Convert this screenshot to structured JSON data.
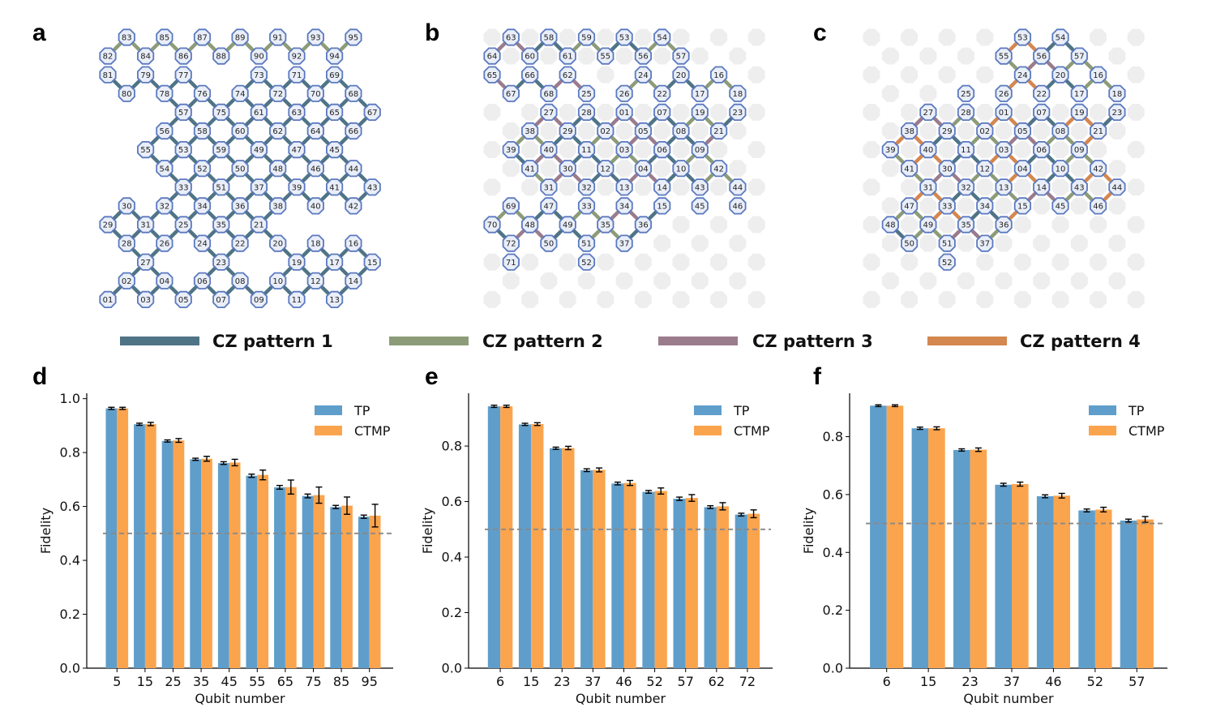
{
  "panels": {
    "a": "a",
    "b": "b",
    "c": "c",
    "d": "d",
    "e": "e",
    "f": "f"
  },
  "colors": {
    "cz1": "#4f7485",
    "cz2": "#8d9c78",
    "cz3": "#9a7c8c",
    "cz4": "#d4874f",
    "node_edge": "#5b79c0",
    "node_fill": "#e9eef8",
    "inactive": "#eeeeee",
    "tp": "#5f9ecb",
    "ctmp": "#fba44e",
    "threshold": "#888888"
  },
  "cz_legend": [
    {
      "label": "CZ pattern 1",
      "color": "#4f7485"
    },
    {
      "label": "CZ pattern 2",
      "color": "#8d9c78"
    },
    {
      "label": "CZ pattern 3",
      "color": "#9a7c8c"
    },
    {
      "label": "CZ pattern 4",
      "color": "#d4874f"
    }
  ],
  "chips": [
    {
      "panel": "a",
      "rows": [
        [
          "",
          "83",
          "",
          "85",
          "",
          "87",
          "",
          "89",
          "",
          "91",
          "",
          "93",
          "",
          "95"
        ],
        [
          "82",
          "",
          "84",
          "",
          "86",
          "",
          "88",
          "",
          "90",
          "",
          "92",
          "",
          "94",
          ""
        ],
        [
          "81",
          "",
          "79",
          "",
          "77",
          "",
          "",
          "",
          "73",
          "",
          "71",
          "",
          "69",
          ""
        ],
        [
          "",
          "80",
          "",
          "78",
          "",
          "76",
          "",
          "74",
          "",
          "72",
          "",
          "70",
          "",
          "68"
        ],
        [
          "",
          "",
          "",
          "",
          "57",
          "",
          "75",
          "",
          "61",
          "",
          "63",
          "",
          "65",
          "",
          "67"
        ],
        [
          "",
          "",
          "",
          "56",
          "",
          "58",
          "",
          "60",
          "",
          "62",
          "",
          "64",
          "",
          "66"
        ],
        [
          "",
          "",
          "55",
          "",
          "53",
          "",
          "59",
          "",
          "49",
          "",
          "47",
          "",
          "45"
        ],
        [
          "",
          "",
          "",
          "54",
          "",
          "52",
          "",
          "50",
          "",
          "48",
          "",
          "46",
          "",
          "44"
        ],
        [
          "",
          "",
          "",
          "",
          "33",
          "",
          "51",
          "",
          "37",
          "",
          "39",
          "",
          "41",
          "",
          "43"
        ],
        [
          "",
          "30",
          "",
          "32",
          "",
          "34",
          "",
          "36",
          "",
          "38",
          "",
          "40",
          "",
          "42"
        ],
        [
          "29",
          "",
          "31",
          "",
          "25",
          "",
          "35",
          "",
          "21"
        ],
        [
          "",
          "28",
          "",
          "26",
          "",
          "24",
          "",
          "22",
          "",
          "20",
          "",
          "18",
          "",
          "16"
        ],
        [
          "",
          "",
          "27",
          "",
          "",
          "",
          "23",
          "",
          "",
          "",
          "19",
          "",
          "17",
          "",
          "15"
        ],
        [
          "",
          "02",
          "",
          "04",
          "",
          "06",
          "",
          "08",
          "",
          "10",
          "",
          "12",
          "",
          "14"
        ],
        [
          "01",
          "",
          "03",
          "",
          "05",
          "",
          "07",
          "",
          "09",
          "",
          "11",
          "",
          "13"
        ]
      ]
    },
    {
      "panel": "b",
      "rows": [
        [
          "",
          "63",
          "",
          "58",
          "",
          "59",
          "",
          "53",
          "",
          "54"
        ],
        [
          "64",
          "",
          "60",
          "",
          "61",
          "",
          "55",
          "",
          "56",
          "",
          "57"
        ],
        [
          "65",
          "",
          "66",
          "",
          "62",
          "",
          "",
          "",
          "24",
          "",
          "20",
          "",
          "16"
        ],
        [
          "",
          "67",
          "",
          "68",
          "",
          "25",
          "",
          "26",
          "",
          "22",
          "",
          "17",
          "",
          "18"
        ],
        [
          "",
          "",
          "",
          "27",
          "",
          "28",
          "",
          "01",
          "",
          "07",
          "",
          "19",
          "",
          "23"
        ],
        [
          "",
          "",
          "38",
          "",
          "29",
          "",
          "02",
          "",
          "05",
          "",
          "08",
          "",
          "21"
        ],
        [
          "",
          "39",
          "",
          "40",
          "",
          "11",
          "",
          "03",
          "",
          "06",
          "",
          "09"
        ],
        [
          "",
          "",
          "41",
          "",
          "30",
          "",
          "12",
          "",
          "04",
          "",
          "10",
          "",
          "42"
        ],
        [
          "",
          "",
          "",
          "31",
          "",
          "32",
          "",
          "13",
          "",
          "14",
          "",
          "43",
          "",
          "44"
        ],
        [
          "",
          "69",
          "",
          "47",
          "",
          "33",
          "",
          "34",
          "",
          "15",
          "",
          "45",
          "",
          "46"
        ],
        [
          "70",
          "",
          "48",
          "",
          "49",
          "",
          "35",
          "",
          "36"
        ],
        [
          "",
          "72",
          "",
          "50",
          "",
          "51",
          "",
          "37"
        ],
        [
          "",
          "71",
          "",
          "",
          "",
          "52"
        ]
      ]
    },
    {
      "panel": "c",
      "rows": [
        [
          "",
          "",
          "",
          "",
          "",
          "",
          "",
          "",
          "53",
          "",
          "54"
        ],
        [
          "",
          "",
          "",
          "",
          "",
          "",
          "",
          "55",
          "",
          "56",
          "",
          "57"
        ],
        [
          "",
          "",
          "",
          "",
          "",
          "",
          "",
          "",
          "24",
          "",
          "20",
          "",
          "16"
        ],
        [
          "",
          "",
          "",
          "",
          "",
          "25",
          "",
          "26",
          "",
          "22",
          "",
          "17",
          "",
          "18"
        ],
        [
          "",
          "",
          "",
          "27",
          "",
          "28",
          "",
          "01",
          "",
          "07",
          "",
          "19",
          "",
          "23"
        ],
        [
          "",
          "",
          "38",
          "",
          "29",
          "",
          "02",
          "",
          "05",
          "",
          "08",
          "",
          "21"
        ],
        [
          "",
          "39",
          "",
          "40",
          "",
          "11",
          "",
          "03",
          "",
          "06",
          "",
          "09"
        ],
        [
          "",
          "",
          "41",
          "",
          "30",
          "",
          "12",
          "",
          "04",
          "",
          "10",
          "",
          "42"
        ],
        [
          "",
          "",
          "",
          "31",
          "",
          "32",
          "",
          "13",
          "",
          "14",
          "",
          "43",
          "",
          "44"
        ],
        [
          "",
          "",
          "47",
          "",
          "33",
          "",
          "34",
          "",
          "15",
          "",
          "45",
          "",
          "46"
        ],
        [
          "",
          "48",
          "",
          "49",
          "",
          "35",
          "",
          "36"
        ],
        [
          "",
          "",
          "50",
          "",
          "51",
          "",
          "37"
        ],
        [
          "",
          "",
          "",
          "",
          "52"
        ]
      ]
    }
  ],
  "chart_data": [
    {
      "panel": "d",
      "type": "bar",
      "categories": [
        "5",
        "15",
        "25",
        "35",
        "45",
        "55",
        "65",
        "75",
        "85",
        "95"
      ],
      "series": [
        {
          "name": "TP",
          "values": [
            0.964,
            0.905,
            0.843,
            0.775,
            0.761,
            0.714,
            0.671,
            0.639,
            0.598,
            0.562
          ],
          "errors": [
            0.004,
            0.004,
            0.004,
            0.004,
            0.005,
            0.006,
            0.007,
            0.007,
            0.006,
            0.006
          ]
        },
        {
          "name": "CTMP",
          "values": [
            0.964,
            0.906,
            0.845,
            0.777,
            0.763,
            0.717,
            0.672,
            0.642,
            0.603,
            0.566
          ],
          "errors": [
            0.004,
            0.006,
            0.007,
            0.009,
            0.012,
            0.018,
            0.026,
            0.03,
            0.032,
            0.042
          ]
        }
      ],
      "threshold": 0.5,
      "xlabel": "Qubit number",
      "ylabel": "Fidelity",
      "ylim": [
        0.0,
        1.02
      ],
      "yticks": [
        "0.0",
        "0.2",
        "0.4",
        "0.6",
        "0.8",
        "1.0"
      ],
      "ytick_values": [
        0.0,
        0.2,
        0.4,
        0.6,
        0.8,
        1.0
      ]
    },
    {
      "panel": "e",
      "type": "bar",
      "categories": [
        "6",
        "15",
        "23",
        "37",
        "46",
        "52",
        "57",
        "62",
        "72"
      ],
      "series": [
        {
          "name": "TP",
          "values": [
            0.943,
            0.878,
            0.792,
            0.713,
            0.665,
            0.635,
            0.61,
            0.58,
            0.553
          ],
          "errors": [
            0.004,
            0.004,
            0.004,
            0.005,
            0.005,
            0.005,
            0.006,
            0.005,
            0.005
          ]
        },
        {
          "name": "CTMP",
          "values": [
            0.943,
            0.879,
            0.793,
            0.714,
            0.667,
            0.638,
            0.613,
            0.583,
            0.556
          ],
          "errors": [
            0.004,
            0.005,
            0.006,
            0.007,
            0.009,
            0.011,
            0.012,
            0.013,
            0.014
          ]
        }
      ],
      "threshold": 0.5,
      "xlabel": "Qubit number",
      "ylabel": "Fidelity",
      "ylim": [
        0.0,
        0.99
      ],
      "yticks": [
        "0.0",
        "0.2",
        "0.4",
        "0.6",
        "0.8"
      ],
      "ytick_values": [
        0.0,
        0.2,
        0.4,
        0.6,
        0.8
      ]
    },
    {
      "panel": "f",
      "type": "bar",
      "categories": [
        "6",
        "15",
        "23",
        "37",
        "46",
        "52",
        "57"
      ],
      "series": [
        {
          "name": "TP",
          "values": [
            0.907,
            0.829,
            0.754,
            0.634,
            0.594,
            0.545,
            0.51
          ],
          "errors": [
            0.003,
            0.004,
            0.004,
            0.005,
            0.005,
            0.005,
            0.005
          ]
        },
        {
          "name": "CTMP",
          "values": [
            0.907,
            0.829,
            0.755,
            0.636,
            0.596,
            0.548,
            0.514
          ],
          "errors": [
            0.003,
            0.005,
            0.006,
            0.007,
            0.008,
            0.008,
            0.01
          ]
        }
      ],
      "threshold": 0.5,
      "xlabel": "Qubit number",
      "ylabel": "Fidelity",
      "ylim": [
        0.0,
        0.95
      ],
      "yticks": [
        "0.0",
        "0.2",
        "0.4",
        "0.6",
        "0.8"
      ],
      "ytick_values": [
        0.0,
        0.2,
        0.4,
        0.6,
        0.8
      ]
    }
  ]
}
